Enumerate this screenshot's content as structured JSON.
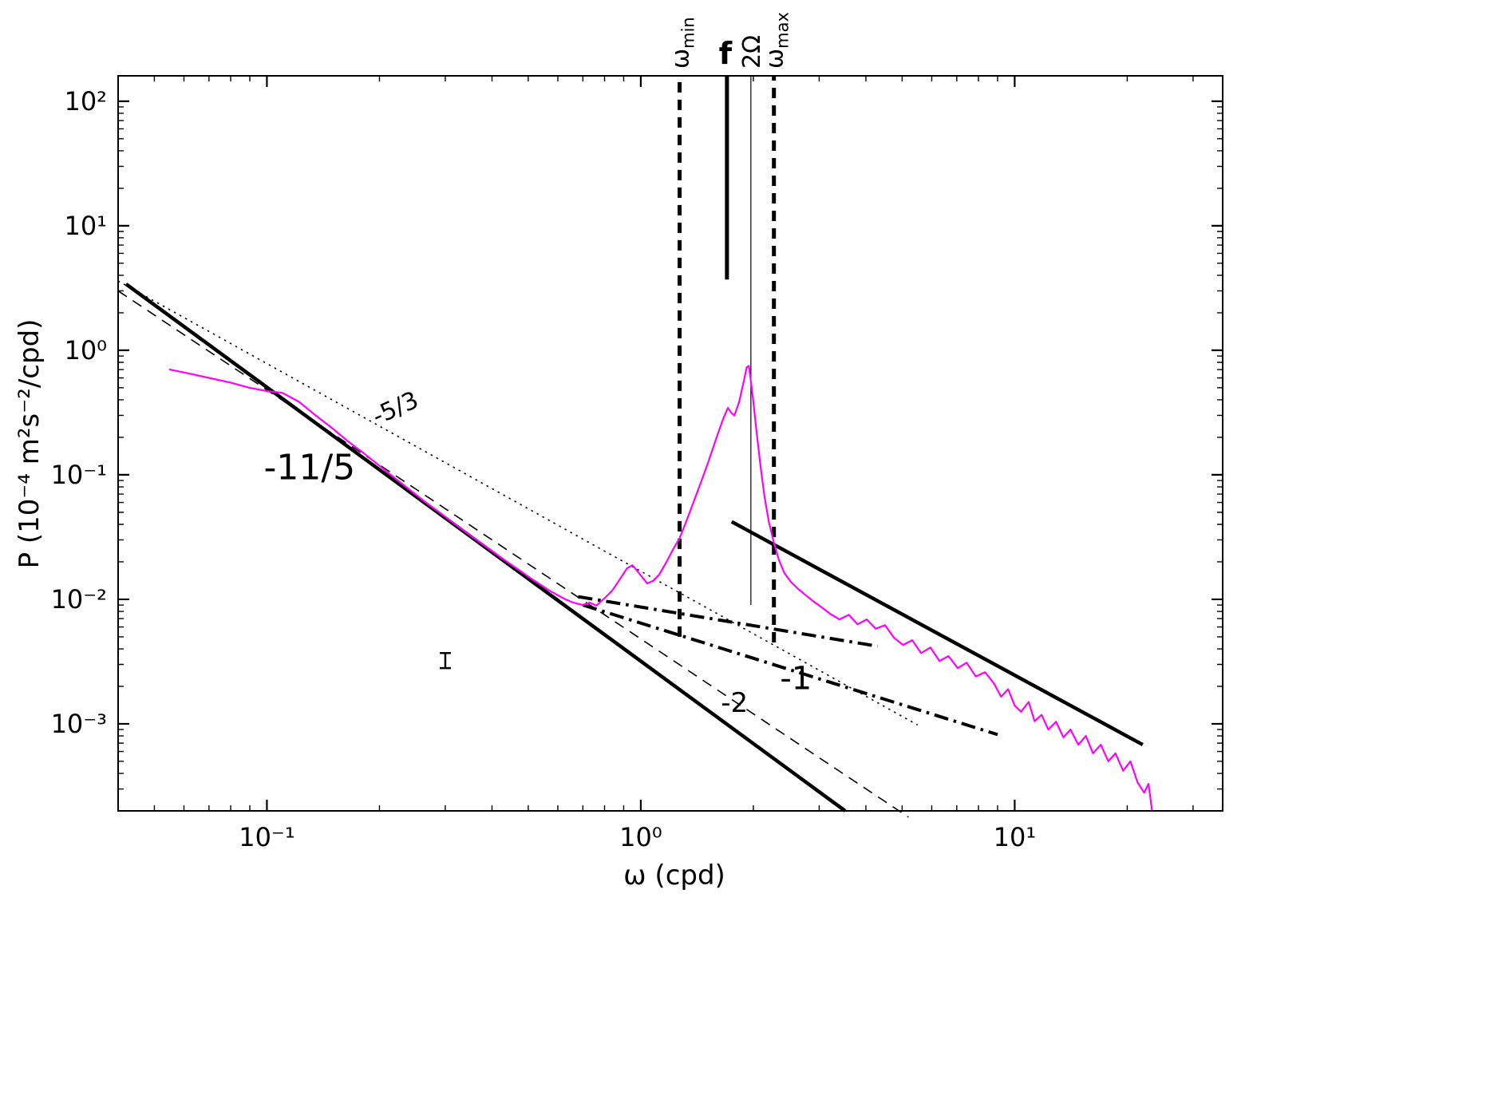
{
  "figure": {
    "background": "#ffffff"
  },
  "chart_data": {
    "type": "line",
    "title": "",
    "xlabel": "ω (cpd)",
    "ylabel": "P (10⁻⁴ m²s⁻²/cpd)",
    "x_scale": "log",
    "y_scale": "log",
    "xlim": [
      0.04,
      36
    ],
    "ylim": [
      0.0002,
      160
    ],
    "grid": false,
    "legend": "none",
    "x_ticks": [
      {
        "value": 0.1,
        "label": "10⁻¹"
      },
      {
        "value": 1,
        "label": "10⁰"
      },
      {
        "value": 10,
        "label": "10¹"
      }
    ],
    "y_ticks": [
      {
        "value": 100,
        "label": "10²"
      },
      {
        "value": 10,
        "label": "10¹"
      },
      {
        "value": 1,
        "label": "10⁰"
      },
      {
        "value": 0.1,
        "label": "10⁻¹"
      },
      {
        "value": 0.01,
        "label": "10⁻²"
      },
      {
        "value": 0.001,
        "label": "10⁻³"
      }
    ],
    "series": [
      {
        "name": "power-spectrum-curve",
        "color": "#ff00ff",
        "width": 2.2,
        "points": [
          [
            0.055,
            0.7
          ],
          [
            0.062,
            0.65
          ],
          [
            0.07,
            0.6
          ],
          [
            0.08,
            0.55
          ],
          [
            0.09,
            0.5
          ],
          [
            0.1,
            0.47
          ],
          [
            0.11,
            0.455
          ],
          [
            0.122,
            0.385
          ],
          [
            0.135,
            0.3
          ],
          [
            0.15,
            0.235
          ],
          [
            0.165,
            0.185
          ],
          [
            0.182,
            0.148
          ],
          [
            0.2,
            0.118
          ],
          [
            0.22,
            0.094
          ],
          [
            0.242,
            0.075
          ],
          [
            0.266,
            0.06
          ],
          [
            0.293,
            0.0485
          ],
          [
            0.322,
            0.0392
          ],
          [
            0.354,
            0.0318
          ],
          [
            0.39,
            0.0258
          ],
          [
            0.429,
            0.021
          ],
          [
            0.472,
            0.0172
          ],
          [
            0.519,
            0.0141
          ],
          [
            0.571,
            0.0117
          ],
          [
            0.628,
            0.01
          ],
          [
            0.66,
            0.0094
          ],
          [
            0.7,
            0.009
          ],
          [
            0.73,
            0.0094
          ],
          [
            0.76,
            0.0089
          ],
          [
            0.8,
            0.0102
          ],
          [
            0.84,
            0.0118
          ],
          [
            0.88,
            0.0146
          ],
          [
            0.92,
            0.0178
          ],
          [
            0.95,
            0.0188
          ],
          [
            0.98,
            0.0168
          ],
          [
            1.01,
            0.015
          ],
          [
            1.04,
            0.0134
          ],
          [
            1.08,
            0.0141
          ],
          [
            1.12,
            0.0158
          ],
          [
            1.17,
            0.0198
          ],
          [
            1.22,
            0.0252
          ],
          [
            1.27,
            0.031
          ],
          [
            1.32,
            0.0415
          ],
          [
            1.38,
            0.059
          ],
          [
            1.45,
            0.088
          ],
          [
            1.52,
            0.13
          ],
          [
            1.59,
            0.195
          ],
          [
            1.66,
            0.28
          ],
          [
            1.71,
            0.345
          ],
          [
            1.745,
            0.315
          ],
          [
            1.78,
            0.3
          ],
          [
            1.83,
            0.38
          ],
          [
            1.88,
            0.54
          ],
          [
            1.92,
            0.73
          ],
          [
            1.945,
            0.75
          ],
          [
            1.97,
            0.56
          ],
          [
            2.0,
            0.39
          ],
          [
            2.04,
            0.22
          ],
          [
            2.09,
            0.118
          ],
          [
            2.14,
            0.068
          ],
          [
            2.2,
            0.042
          ],
          [
            2.27,
            0.0285
          ],
          [
            2.34,
            0.0208
          ],
          [
            2.42,
            0.0163
          ],
          [
            2.52,
            0.0138
          ],
          [
            2.63,
            0.0122
          ],
          [
            2.76,
            0.0108
          ],
          [
            2.9,
            0.0096
          ],
          [
            3.05,
            0.0086
          ],
          [
            3.22,
            0.0076
          ],
          [
            3.4,
            0.0069
          ],
          [
            3.6,
            0.0075
          ],
          [
            3.8,
            0.0063
          ],
          [
            4.02,
            0.0069
          ],
          [
            4.25,
            0.0058
          ],
          [
            4.5,
            0.0062
          ],
          [
            4.76,
            0.0049
          ],
          [
            5.03,
            0.0043
          ],
          [
            5.32,
            0.0047
          ],
          [
            5.62,
            0.0037
          ],
          [
            5.95,
            0.0041
          ],
          [
            6.29,
            0.0032
          ],
          [
            6.65,
            0.0035
          ],
          [
            7.04,
            0.0028
          ],
          [
            7.44,
            0.0031
          ],
          [
            7.87,
            0.0024
          ],
          [
            8.33,
            0.0026
          ],
          [
            8.81,
            0.0021
          ],
          [
            9.2,
            0.00165
          ],
          [
            9.6,
            0.0019
          ],
          [
            10.0,
            0.0014
          ],
          [
            10.4,
            0.00125
          ],
          [
            10.9,
            0.0015
          ],
          [
            11.3,
            0.00105
          ],
          [
            11.8,
            0.00118
          ],
          [
            12.3,
            0.0009
          ],
          [
            12.9,
            0.00104
          ],
          [
            13.5,
            0.00078
          ],
          [
            14.1,
            0.0009
          ],
          [
            14.8,
            0.00068
          ],
          [
            15.5,
            0.0008
          ],
          [
            16.2,
            0.00058
          ],
          [
            17.0,
            0.00068
          ],
          [
            17.8,
            0.0005
          ],
          [
            18.6,
            0.00058
          ],
          [
            19.5,
            0.00042
          ],
          [
            20.4,
            0.0005
          ],
          [
            21.3,
            0.00034
          ],
          [
            22.2,
            0.00028
          ],
          [
            22.8,
            0.00033
          ],
          [
            23.3,
            0.0002
          ]
        ]
      }
    ],
    "reference_lines": [
      {
        "name": "slope-5-3-line",
        "slope": "-5/3",
        "style": "dotted",
        "width": 1.6,
        "color": "#000000",
        "points": [
          [
            0.04,
            3.6
          ],
          [
            5.5,
            0.00098
          ]
        ]
      },
      {
        "name": "slope-11-5-line",
        "slope": "-11/5",
        "style": "solid",
        "width": 4.5,
        "color": "#000000",
        "points": [
          [
            0.042,
            3.4
          ],
          [
            3.52,
            0.0002
          ]
        ]
      },
      {
        "name": "slope-2-line",
        "slope": "-2",
        "style": "dashed",
        "width": 1.6,
        "color": "#000000",
        "points": [
          [
            0.04,
            3.0
          ],
          [
            5.2,
            0.000178
          ]
        ]
      },
      {
        "name": "tail-fit-line",
        "slope": "",
        "style": "solid",
        "width": 4.5,
        "color": "#000000",
        "points": [
          [
            1.75,
            0.042
          ],
          [
            22.0,
            0.00068
          ]
        ]
      },
      {
        "name": "dashdot-upper-line",
        "slope": "",
        "style": "dashdot",
        "width": 4.0,
        "color": "#000000",
        "points": [
          [
            0.68,
            0.0105
          ],
          [
            4.3,
            0.0042
          ]
        ]
      },
      {
        "name": "dashdot-lower-line",
        "slope": "-1",
        "style": "dashdot",
        "width": 4.0,
        "color": "#000000",
        "points": [
          [
            0.7,
            0.009
          ],
          [
            9.0,
            0.00082
          ]
        ]
      }
    ],
    "vertical_lines": [
      {
        "name": "omega-min-line",
        "x": 1.27,
        "y_from": 0.005,
        "y_to": 160,
        "style": "dashed",
        "width": 5.0,
        "label": {
          "main": "ω",
          "sub": "min"
        },
        "label_rotated": true,
        "label_bold": false
      },
      {
        "name": "f-line",
        "x": 1.7,
        "y_from": 3.7,
        "y_to": 160,
        "style": "solid",
        "width": 5.0,
        "label": {
          "main": "f",
          "sub": ""
        },
        "label_rotated": false,
        "label_bold": true
      },
      {
        "name": "two-omega-line",
        "x": 1.97,
        "y_from": 0.009,
        "y_to": 160,
        "style": "solid",
        "width": 1.2,
        "label": {
          "main": "2Ω",
          "sub": ""
        },
        "label_rotated": true,
        "label_bold": false
      },
      {
        "name": "omega-max-line",
        "x": 2.27,
        "y_from": 0.0045,
        "y_to": 160,
        "style": "dashed",
        "width": 5.0,
        "label": {
          "main": "ω",
          "sub": "max"
        },
        "label_rotated": true,
        "label_bold": false
      }
    ],
    "annotations": [
      {
        "name": "slope-label-5-3",
        "text": "-5/3",
        "x": 0.225,
        "y": 0.3,
        "size": 30,
        "rotate": -24,
        "bold": false
      },
      {
        "name": "slope-label-11-5",
        "text": "-11/5",
        "x": 0.13,
        "y": 0.092,
        "size": 44,
        "rotate": 0,
        "bold": false
      },
      {
        "name": "slope-label-2",
        "text": "-2",
        "x": 1.78,
        "y": 0.00125,
        "size": 34,
        "rotate": 0,
        "bold": false
      },
      {
        "name": "slope-label-1",
        "text": "-1",
        "x": 2.6,
        "y": 0.0019,
        "size": 40,
        "rotate": 0,
        "bold": false
      }
    ],
    "error_bar": {
      "x": 0.3,
      "y_low": 0.0028,
      "y_high": 0.0037
    }
  }
}
